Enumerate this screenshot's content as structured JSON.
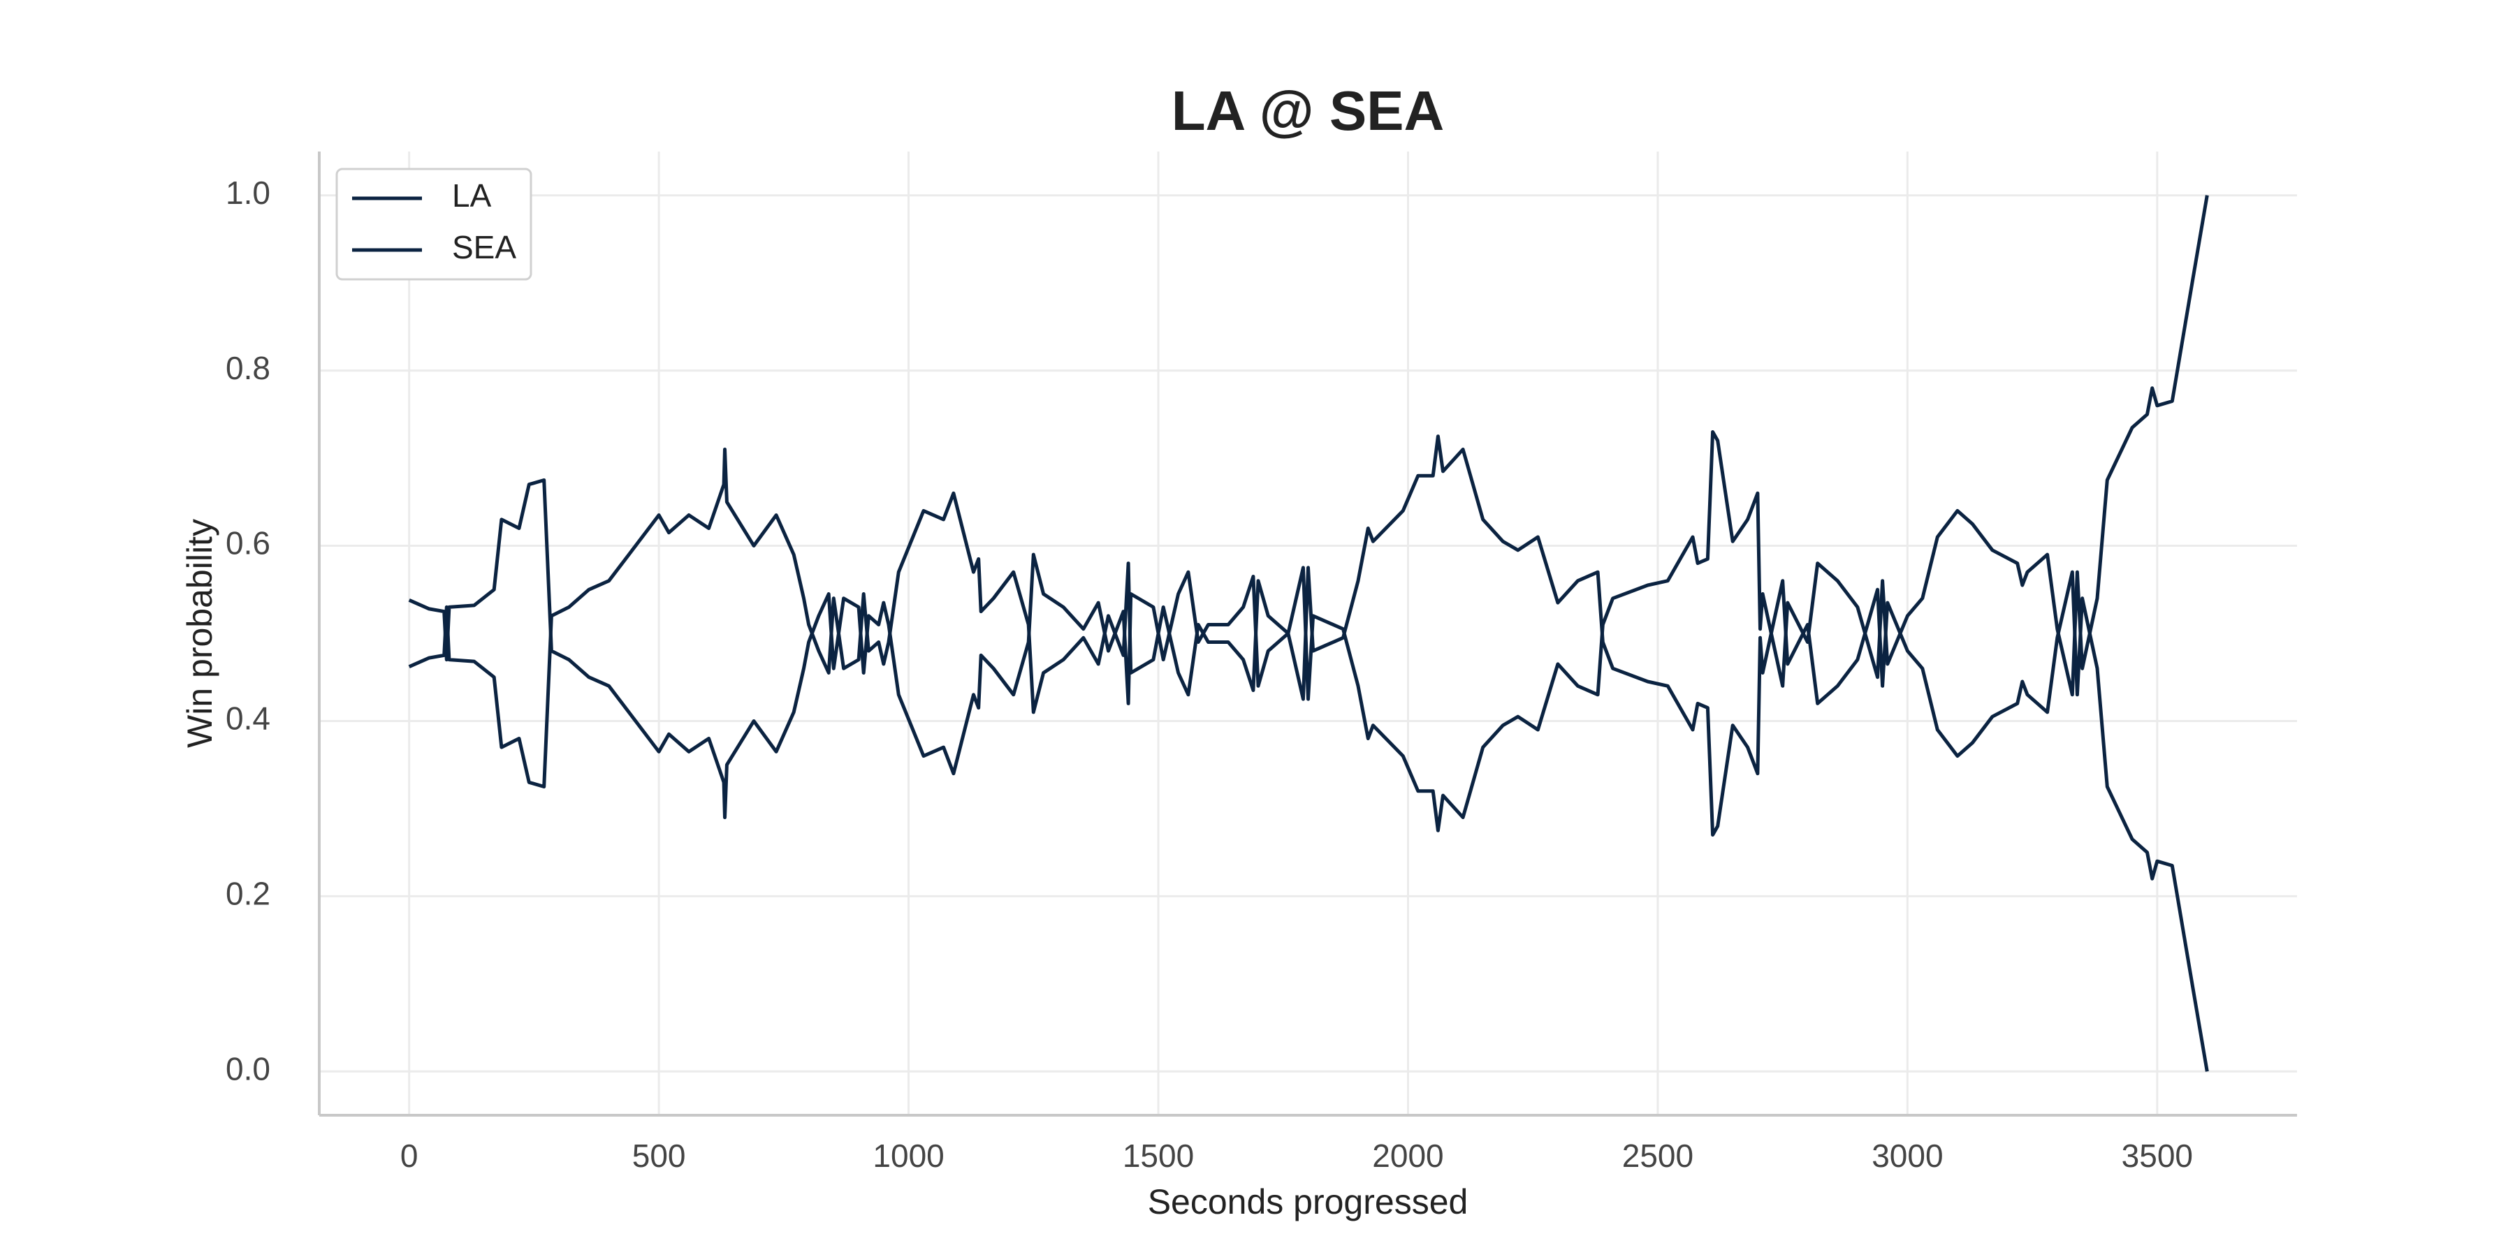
{
  "chart_data": {
    "type": "line",
    "title": "LA @ SEA",
    "xlabel": "Seconds progressed",
    "ylabel": "Win probability",
    "x": [
      0,
      40,
      70,
      75,
      80,
      130,
      170,
      185,
      220,
      240,
      270,
      285,
      320,
      360,
      400,
      440,
      500,
      520,
      560,
      600,
      630,
      632,
      636,
      690,
      735,
      770,
      790,
      800,
      820,
      840,
      850,
      870,
      900,
      910,
      920,
      940,
      950,
      960,
      980,
      1030,
      1070,
      1090,
      1130,
      1140,
      1145,
      1170,
      1210,
      1240,
      1250,
      1270,
      1310,
      1350,
      1380,
      1400,
      1430,
      1440,
      1445,
      1490,
      1510,
      1540,
      1560,
      1580,
      1600,
      1640,
      1670,
      1690,
      1700,
      1720,
      1760,
      1790,
      1800,
      1810,
      1870,
      1900,
      1920,
      1930,
      1990,
      2020,
      2050,
      2060,
      2070,
      2110,
      2150,
      2190,
      2220,
      2260,
      2300,
      2340,
      2380,
      2390,
      2410,
      2480,
      2520,
      2570,
      2580,
      2600,
      2610,
      2620,
      2650,
      2680,
      2700,
      2705,
      2710,
      2750,
      2760,
      2800,
      2820,
      2860,
      2900,
      2940,
      2950,
      2960,
      3000,
      3030,
      3060,
      3100,
      3130,
      3170,
      3220,
      3230,
      3240,
      3280,
      3300,
      3330,
      3340,
      3350,
      3380,
      3400,
      3450,
      3480,
      3490,
      3500,
      3530,
      3570,
      3600
    ],
    "series": [
      {
        "name": "LA",
        "color": "#0b2341",
        "values": [
          0.538,
          0.528,
          0.525,
          0.47,
          0.53,
          0.532,
          0.55,
          0.63,
          0.62,
          0.67,
          0.675,
          0.48,
          0.47,
          0.45,
          0.44,
          0.41,
          0.365,
          0.385,
          0.365,
          0.38,
          0.33,
          0.29,
          0.35,
          0.4,
          0.365,
          0.41,
          0.46,
          0.49,
          0.52,
          0.545,
          0.46,
          0.54,
          0.53,
          0.455,
          0.52,
          0.51,
          0.535,
          0.51,
          0.43,
          0.36,
          0.37,
          0.34,
          0.43,
          0.415,
          0.475,
          0.46,
          0.43,
          0.49,
          0.59,
          0.545,
          0.53,
          0.505,
          0.535,
          0.48,
          0.525,
          0.42,
          0.545,
          0.53,
          0.47,
          0.545,
          0.57,
          0.49,
          0.51,
          0.51,
          0.53,
          0.565,
          0.44,
          0.48,
          0.5,
          0.425,
          0.575,
          0.48,
          0.495,
          0.56,
          0.62,
          0.605,
          0.64,
          0.68,
          0.68,
          0.725,
          0.685,
          0.71,
          0.63,
          0.605,
          0.595,
          0.61,
          0.535,
          0.56,
          0.57,
          0.49,
          0.46,
          0.445,
          0.44,
          0.39,
          0.42,
          0.415,
          0.27,
          0.28,
          0.395,
          0.37,
          0.34,
          0.495,
          0.455,
          0.56,
          0.465,
          0.51,
          0.42,
          0.44,
          0.47,
          0.55,
          0.44,
          0.535,
          0.48,
          0.46,
          0.39,
          0.36,
          0.375,
          0.405,
          0.42,
          0.445,
          0.43,
          0.41,
          0.495,
          0.57,
          0.43,
          0.54,
          0.46,
          0.325,
          0.265,
          0.25,
          0.22,
          0.24,
          0.235,
          0.1,
          0.0
        ]
      },
      {
        "name": "SEA",
        "color": "#0b2341",
        "values": [
          0.462,
          0.472,
          0.475,
          0.53,
          0.47,
          0.468,
          0.45,
          0.37,
          0.38,
          0.33,
          0.325,
          0.52,
          0.53,
          0.55,
          0.56,
          0.59,
          0.635,
          0.615,
          0.635,
          0.62,
          0.67,
          0.71,
          0.65,
          0.6,
          0.635,
          0.59,
          0.54,
          0.51,
          0.48,
          0.455,
          0.54,
          0.46,
          0.47,
          0.545,
          0.48,
          0.49,
          0.465,
          0.49,
          0.57,
          0.64,
          0.63,
          0.66,
          0.57,
          0.585,
          0.525,
          0.54,
          0.57,
          0.51,
          0.41,
          0.455,
          0.47,
          0.495,
          0.465,
          0.52,
          0.475,
          0.58,
          0.455,
          0.47,
          0.53,
          0.455,
          0.43,
          0.51,
          0.49,
          0.49,
          0.47,
          0.435,
          0.56,
          0.52,
          0.5,
          0.575,
          0.425,
          0.52,
          0.505,
          0.44,
          0.38,
          0.395,
          0.36,
          0.32,
          0.32,
          0.275,
          0.315,
          0.29,
          0.37,
          0.395,
          0.405,
          0.39,
          0.465,
          0.44,
          0.43,
          0.51,
          0.54,
          0.555,
          0.56,
          0.61,
          0.58,
          0.585,
          0.73,
          0.72,
          0.605,
          0.63,
          0.66,
          0.505,
          0.545,
          0.44,
          0.535,
          0.49,
          0.58,
          0.56,
          0.53,
          0.45,
          0.56,
          0.465,
          0.52,
          0.54,
          0.61,
          0.64,
          0.625,
          0.595,
          0.58,
          0.555,
          0.57,
          0.59,
          0.505,
          0.43,
          0.57,
          0.46,
          0.54,
          0.675,
          0.735,
          0.75,
          0.78,
          0.76,
          0.765,
          0.9,
          1.0
        ]
      }
    ],
    "xlim": [
      -180,
      3780
    ],
    "ylim": [
      -0.05,
      1.05
    ],
    "xticks": [
      0,
      500,
      1000,
      1500,
      2000,
      2500,
      3000,
      3500
    ],
    "yticks": [
      {
        "value": 0,
        "label": "0.0"
      },
      0.2,
      0.4,
      0.6,
      0.8,
      {
        "value": 1,
        "label": "1.0"
      }
    ],
    "grid": true,
    "legend": "upper left"
  }
}
